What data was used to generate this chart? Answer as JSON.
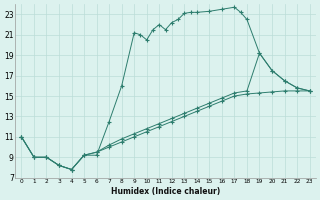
{
  "xlabel": "Humidex (Indice chaleur)",
  "line_color": "#2D7D6E",
  "bg_color": "#DCF2EE",
  "grid_color": "#BBDDD8",
  "xlim": [
    -0.5,
    23.5
  ],
  "ylim": [
    7,
    24
  ],
  "xticks": [
    0,
    1,
    2,
    3,
    4,
    5,
    6,
    7,
    8,
    9,
    10,
    11,
    12,
    13,
    14,
    15,
    16,
    17,
    18,
    19,
    20,
    21,
    22,
    23
  ],
  "yticks": [
    7,
    9,
    11,
    13,
    15,
    17,
    19,
    21,
    23
  ],
  "series1": [
    [
      0,
      11
    ],
    [
      1,
      9
    ],
    [
      2,
      9
    ],
    [
      3,
      8.2
    ],
    [
      4,
      7.8
    ],
    [
      5,
      9.2
    ],
    [
      6,
      9.2
    ],
    [
      7,
      12.5
    ],
    [
      8,
      16
    ],
    [
      9,
      21.2
    ],
    [
      9.5,
      21
    ],
    [
      10,
      20.5
    ],
    [
      10.5,
      21.5
    ],
    [
      11,
      22
    ],
    [
      11.5,
      21.5
    ],
    [
      12,
      22.2
    ],
    [
      12.5,
      22.5
    ],
    [
      13,
      23.1
    ],
    [
      13.5,
      23.2
    ],
    [
      14,
      23.2
    ],
    [
      15,
      23.3
    ],
    [
      16,
      23.5
    ],
    [
      17,
      23.7
    ],
    [
      17.5,
      23.2
    ],
    [
      18,
      22.5
    ],
    [
      19,
      19.2
    ],
    [
      20,
      17.5
    ],
    [
      21,
      16.5
    ],
    [
      22,
      15.8
    ],
    [
      23,
      15.5
    ]
  ],
  "series2": [
    [
      0,
      11
    ],
    [
      1,
      9
    ],
    [
      2,
      9
    ],
    [
      3,
      8.2
    ],
    [
      4,
      7.8
    ],
    [
      5,
      9.2
    ],
    [
      6,
      9.5
    ],
    [
      7,
      10.0
    ],
    [
      8,
      10.5
    ],
    [
      9,
      11.0
    ],
    [
      10,
      11.5
    ],
    [
      11,
      12.0
    ],
    [
      12,
      12.5
    ],
    [
      13,
      13.0
    ],
    [
      14,
      13.5
    ],
    [
      15,
      14.0
    ],
    [
      16,
      14.5
    ],
    [
      17,
      15.0
    ],
    [
      18,
      15.2
    ],
    [
      19,
      15.3
    ],
    [
      20,
      15.4
    ],
    [
      21,
      15.5
    ],
    [
      22,
      15.5
    ],
    [
      23,
      15.5
    ]
  ],
  "series3": [
    [
      0,
      11
    ],
    [
      1,
      9
    ],
    [
      2,
      9
    ],
    [
      3,
      8.2
    ],
    [
      4,
      7.8
    ],
    [
      5,
      9.2
    ],
    [
      6,
      9.5
    ],
    [
      7,
      10.2
    ],
    [
      8,
      10.8
    ],
    [
      9,
      11.3
    ],
    [
      10,
      11.8
    ],
    [
      11,
      12.3
    ],
    [
      12,
      12.8
    ],
    [
      13,
      13.3
    ],
    [
      14,
      13.8
    ],
    [
      15,
      14.3
    ],
    [
      16,
      14.8
    ],
    [
      17,
      15.3
    ],
    [
      18,
      15.5
    ],
    [
      19,
      19.2
    ],
    [
      20,
      17.5
    ],
    [
      21,
      16.5
    ],
    [
      22,
      15.8
    ],
    [
      23,
      15.5
    ]
  ]
}
